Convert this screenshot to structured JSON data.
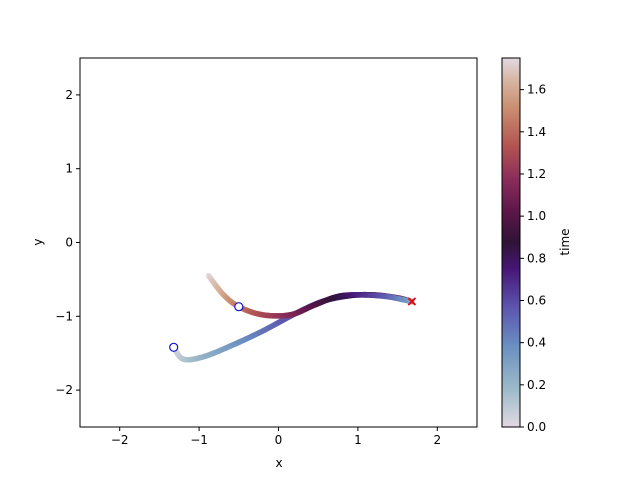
{
  "chart_data": {
    "type": "scatter",
    "title": "",
    "xlabel": "x",
    "ylabel": "y",
    "xlim": [
      -2.5,
      2.5
    ],
    "ylim": [
      -2.5,
      2.5
    ],
    "x_ticks": [
      -2,
      -1,
      0,
      1,
      2
    ],
    "y_ticks": [
      -2,
      -1,
      0,
      1,
      2
    ],
    "x_tick_labels": [
      "−2",
      "−1",
      "0",
      "1",
      "2"
    ],
    "y_tick_labels": [
      "−2",
      "−1",
      "0",
      "1",
      "2"
    ],
    "grid": false,
    "colormap": "twilight",
    "colorbar": {
      "label": "time",
      "range": [
        0,
        1.75
      ],
      "ticks": [
        0.0,
        0.2,
        0.4,
        0.6,
        0.8,
        1.0,
        1.2,
        1.4,
        1.6
      ],
      "tick_labels": [
        "0.0",
        "0.2",
        "0.4",
        "0.6",
        "0.8",
        "1.0",
        "1.2",
        "1.4",
        "1.6"
      ]
    },
    "series": [
      {
        "points": [
          {
            "x": -1.32,
            "y": -1.42,
            "t": 0.0
          },
          {
            "x": -1.2,
            "y": -1.58,
            "t": 0.1
          },
          {
            "x": -0.95,
            "y": -1.55,
            "t": 0.21
          },
          {
            "x": -0.6,
            "y": -1.4,
            "t": 0.33
          },
          {
            "x": -0.2,
            "y": -1.2,
            "t": 0.46
          },
          {
            "x": 0.2,
            "y": -0.97,
            "t": 0.6
          },
          {
            "x": 0.55,
            "y": -0.8,
            "t": 0.72
          },
          {
            "x": 0.9,
            "y": -0.72,
            "t": 0.86
          },
          {
            "x": 1.2,
            "y": -0.71,
            "t": 0.98
          },
          {
            "x": 1.5,
            "y": -0.75,
            "t": 1.1
          },
          {
            "x": 1.68,
            "y": -0.8,
            "t": 1.18
          }
        ],
        "marker_start": "circle",
        "marker_end": "x"
      },
      {
        "points": [
          {
            "x": -0.88,
            "y": -0.45,
            "t": 1.75
          },
          {
            "x": -0.7,
            "y": -0.7,
            "t": 1.6
          },
          {
            "x": -0.5,
            "y": -0.87,
            "t": 1.45
          },
          {
            "x": -0.2,
            "y": -0.98,
            "t": 1.3
          },
          {
            "x": 0.15,
            "y": -0.98,
            "t": 1.15
          },
          {
            "x": 0.45,
            "y": -0.85,
            "t": 1.0
          },
          {
            "x": 0.75,
            "y": -0.73,
            "t": 0.85
          },
          {
            "x": 1.05,
            "y": -0.71,
            "t": 0.7
          },
          {
            "x": 1.35,
            "y": -0.73,
            "t": 0.55
          },
          {
            "x": 1.55,
            "y": -0.77,
            "t": 0.4
          },
          {
            "x": 1.68,
            "y": -0.8,
            "t": 0.3
          }
        ],
        "marker_start": "circle",
        "marker_start_at": {
          "x": -0.5,
          "y": -0.87
        },
        "marker_end": "x"
      }
    ]
  }
}
